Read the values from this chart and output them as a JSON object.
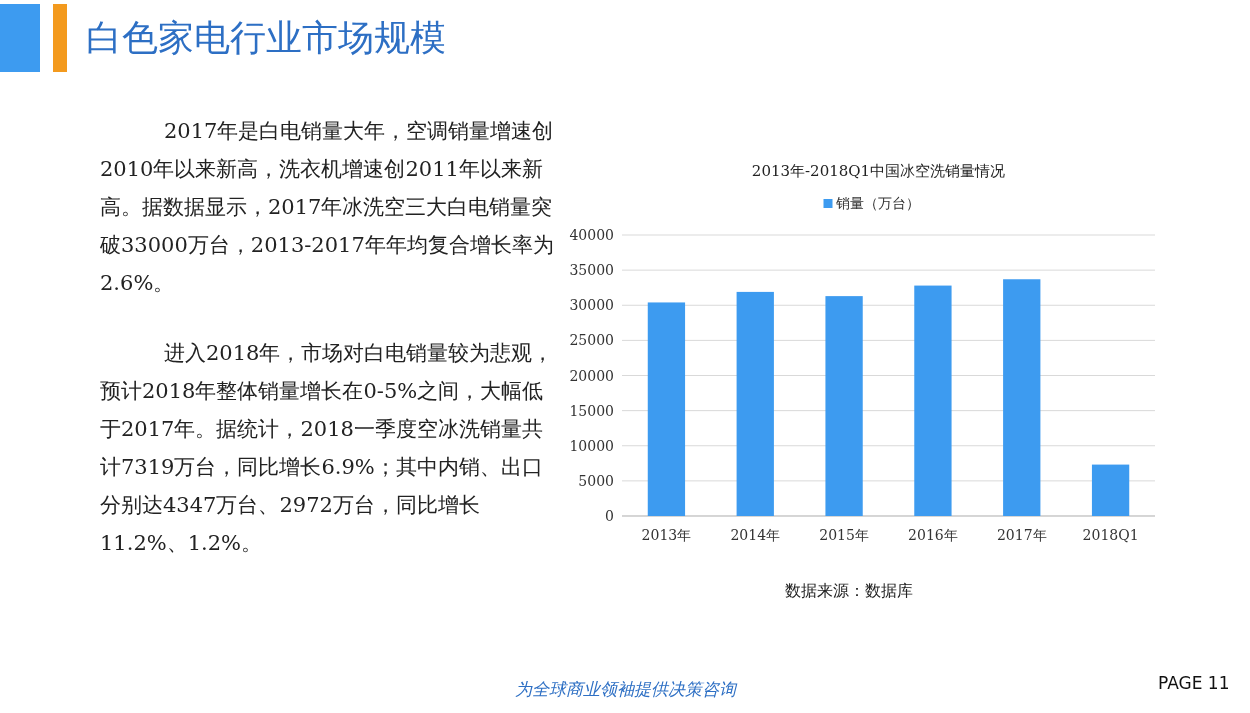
{
  "chart_data": [
    {
      "type": "other",
      "title": "白色家电行业市场规模",
      "annotations": [
        "2017年是白电销量大年，空调销量增速创2010年以来新高，洗衣机增速创2011年以来新高。据数据显示，2017年冰洗空三大白电销量突破33000万台，2013-2017年年均复合增长率为2.6%。",
        "进入2018年，市场对白电销量较为悲观，预计2018年整体销量增长在0-5%之间，大幅低于2017年。据统计，2018一季度空冰洗销量共计7319万台，同比增长6.9%；其中内销、出口分别达4347万台、2972万台，同比增长11.2%、1.2%。",
        "为全球商业领袖提供决策咨询",
        "PAGE 11"
      ]
    },
    {
      "type": "bar",
      "title": "2013年-2018Q1中国冰空洗销量情况",
      "categories": [
        "2013年",
        "2014年",
        "2015年",
        "2016年",
        "2017年",
        "2018Q1"
      ],
      "series": [
        {
          "name": "销量（万台）",
          "color": "#3d9bf0",
          "values": [
            30400,
            31900,
            31300,
            32800,
            33700,
            7319
          ]
        }
      ],
      "ylim": [
        0,
        40000
      ],
      "yticks": [
        0,
        5000,
        10000,
        15000,
        20000,
        25000,
        30000,
        35000,
        40000
      ],
      "grid": "y",
      "legend": "top",
      "annotations": [
        "数据来源：数据库"
      ]
    }
  ]
}
